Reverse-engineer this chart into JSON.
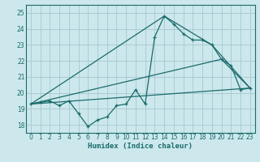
{
  "title": "",
  "xlabel": "Humidex (Indice chaleur)",
  "bg_color": "#cce8ec",
  "grid_color": "#aaccd4",
  "line_color": "#1a6b6b",
  "xlim": [
    -0.5,
    23.5
  ],
  "ylim": [
    17.5,
    25.5
  ],
  "xticks": [
    0,
    1,
    2,
    3,
    4,
    5,
    6,
    7,
    8,
    9,
    10,
    11,
    12,
    13,
    14,
    15,
    16,
    17,
    18,
    19,
    20,
    21,
    22,
    23
  ],
  "yticks": [
    18,
    19,
    20,
    21,
    22,
    23,
    24,
    25
  ],
  "series1_x": [
    0,
    1,
    2,
    3,
    4,
    5,
    6,
    7,
    8,
    9,
    10,
    11,
    12,
    13,
    14,
    15,
    16,
    17,
    18,
    19,
    20,
    21,
    22,
    23
  ],
  "series1_y": [
    19.3,
    19.4,
    19.5,
    19.2,
    19.5,
    18.7,
    17.9,
    18.3,
    18.5,
    19.2,
    19.3,
    20.2,
    19.3,
    23.5,
    24.8,
    24.3,
    23.7,
    23.3,
    23.3,
    23.0,
    22.1,
    21.7,
    20.2,
    20.3
  ],
  "series2_x": [
    0,
    14,
    19,
    23
  ],
  "series2_y": [
    19.3,
    24.8,
    23.0,
    20.3
  ],
  "series3_x": [
    0,
    23
  ],
  "series3_y": [
    19.3,
    20.3
  ],
  "series4_x": [
    0,
    20,
    23
  ],
  "series4_y": [
    19.3,
    22.1,
    20.3
  ],
  "tick_fontsize": 5.5,
  "xlabel_fontsize": 6.5
}
